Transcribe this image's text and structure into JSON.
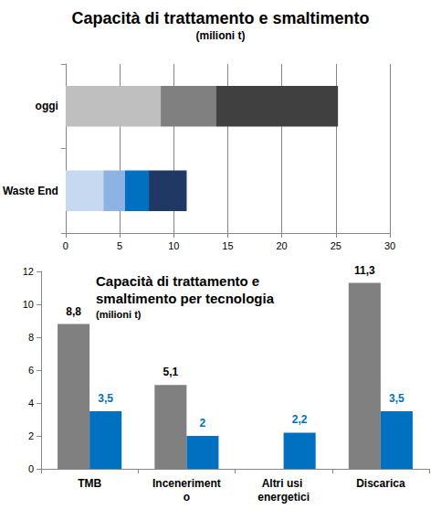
{
  "chart_data": [
    {
      "type": "bar",
      "title": "Capacità di trattamento e smaltimento",
      "subtitle": "(milioni t)",
      "orientation": "horizontal",
      "stacked": true,
      "grid": true,
      "categories": [
        "oggi",
        "Waste End"
      ],
      "series": [
        {
          "values": [
            8.8,
            3.5
          ],
          "colors": [
            "#bfbfbf",
            "#c6d9f1"
          ]
        },
        {
          "values": [
            5.1,
            2
          ],
          "colors": [
            "#808080",
            "#8db3e2"
          ]
        },
        {
          "values": [
            null,
            2.2
          ],
          "colors": [
            null,
            "#0070c0"
          ]
        },
        {
          "values": [
            11.3,
            3.5
          ],
          "colors": [
            "#404040",
            "#1f3864"
          ]
        }
      ],
      "xlim": [
        0,
        30
      ],
      "xticks": [
        0,
        5,
        10,
        15,
        20,
        25,
        30
      ]
    },
    {
      "type": "bar",
      "title": "Capacità di trattamento e smaltimento per tecnologia",
      "subtitle": "(milioni t)",
      "grid": false,
      "data_labels": true,
      "categories": [
        "TMB",
        "Incenerimento",
        "Altri usi energetici",
        "Discarica"
      ],
      "series": [
        {
          "color": "#808080",
          "values": [
            8.8,
            5.1,
            null,
            11.3
          ],
          "value_labels": [
            "8,8",
            "5,1",
            null,
            "11,3"
          ]
        },
        {
          "color": "#0070c0",
          "values": [
            3.5,
            2,
            2.2,
            3.5
          ],
          "value_labels": [
            "3,5",
            "2",
            "2,2",
            "3,5"
          ]
        }
      ],
      "ylim": [
        0,
        12
      ],
      "yticks": [
        0,
        2,
        4,
        6,
        8,
        10,
        12
      ]
    }
  ]
}
